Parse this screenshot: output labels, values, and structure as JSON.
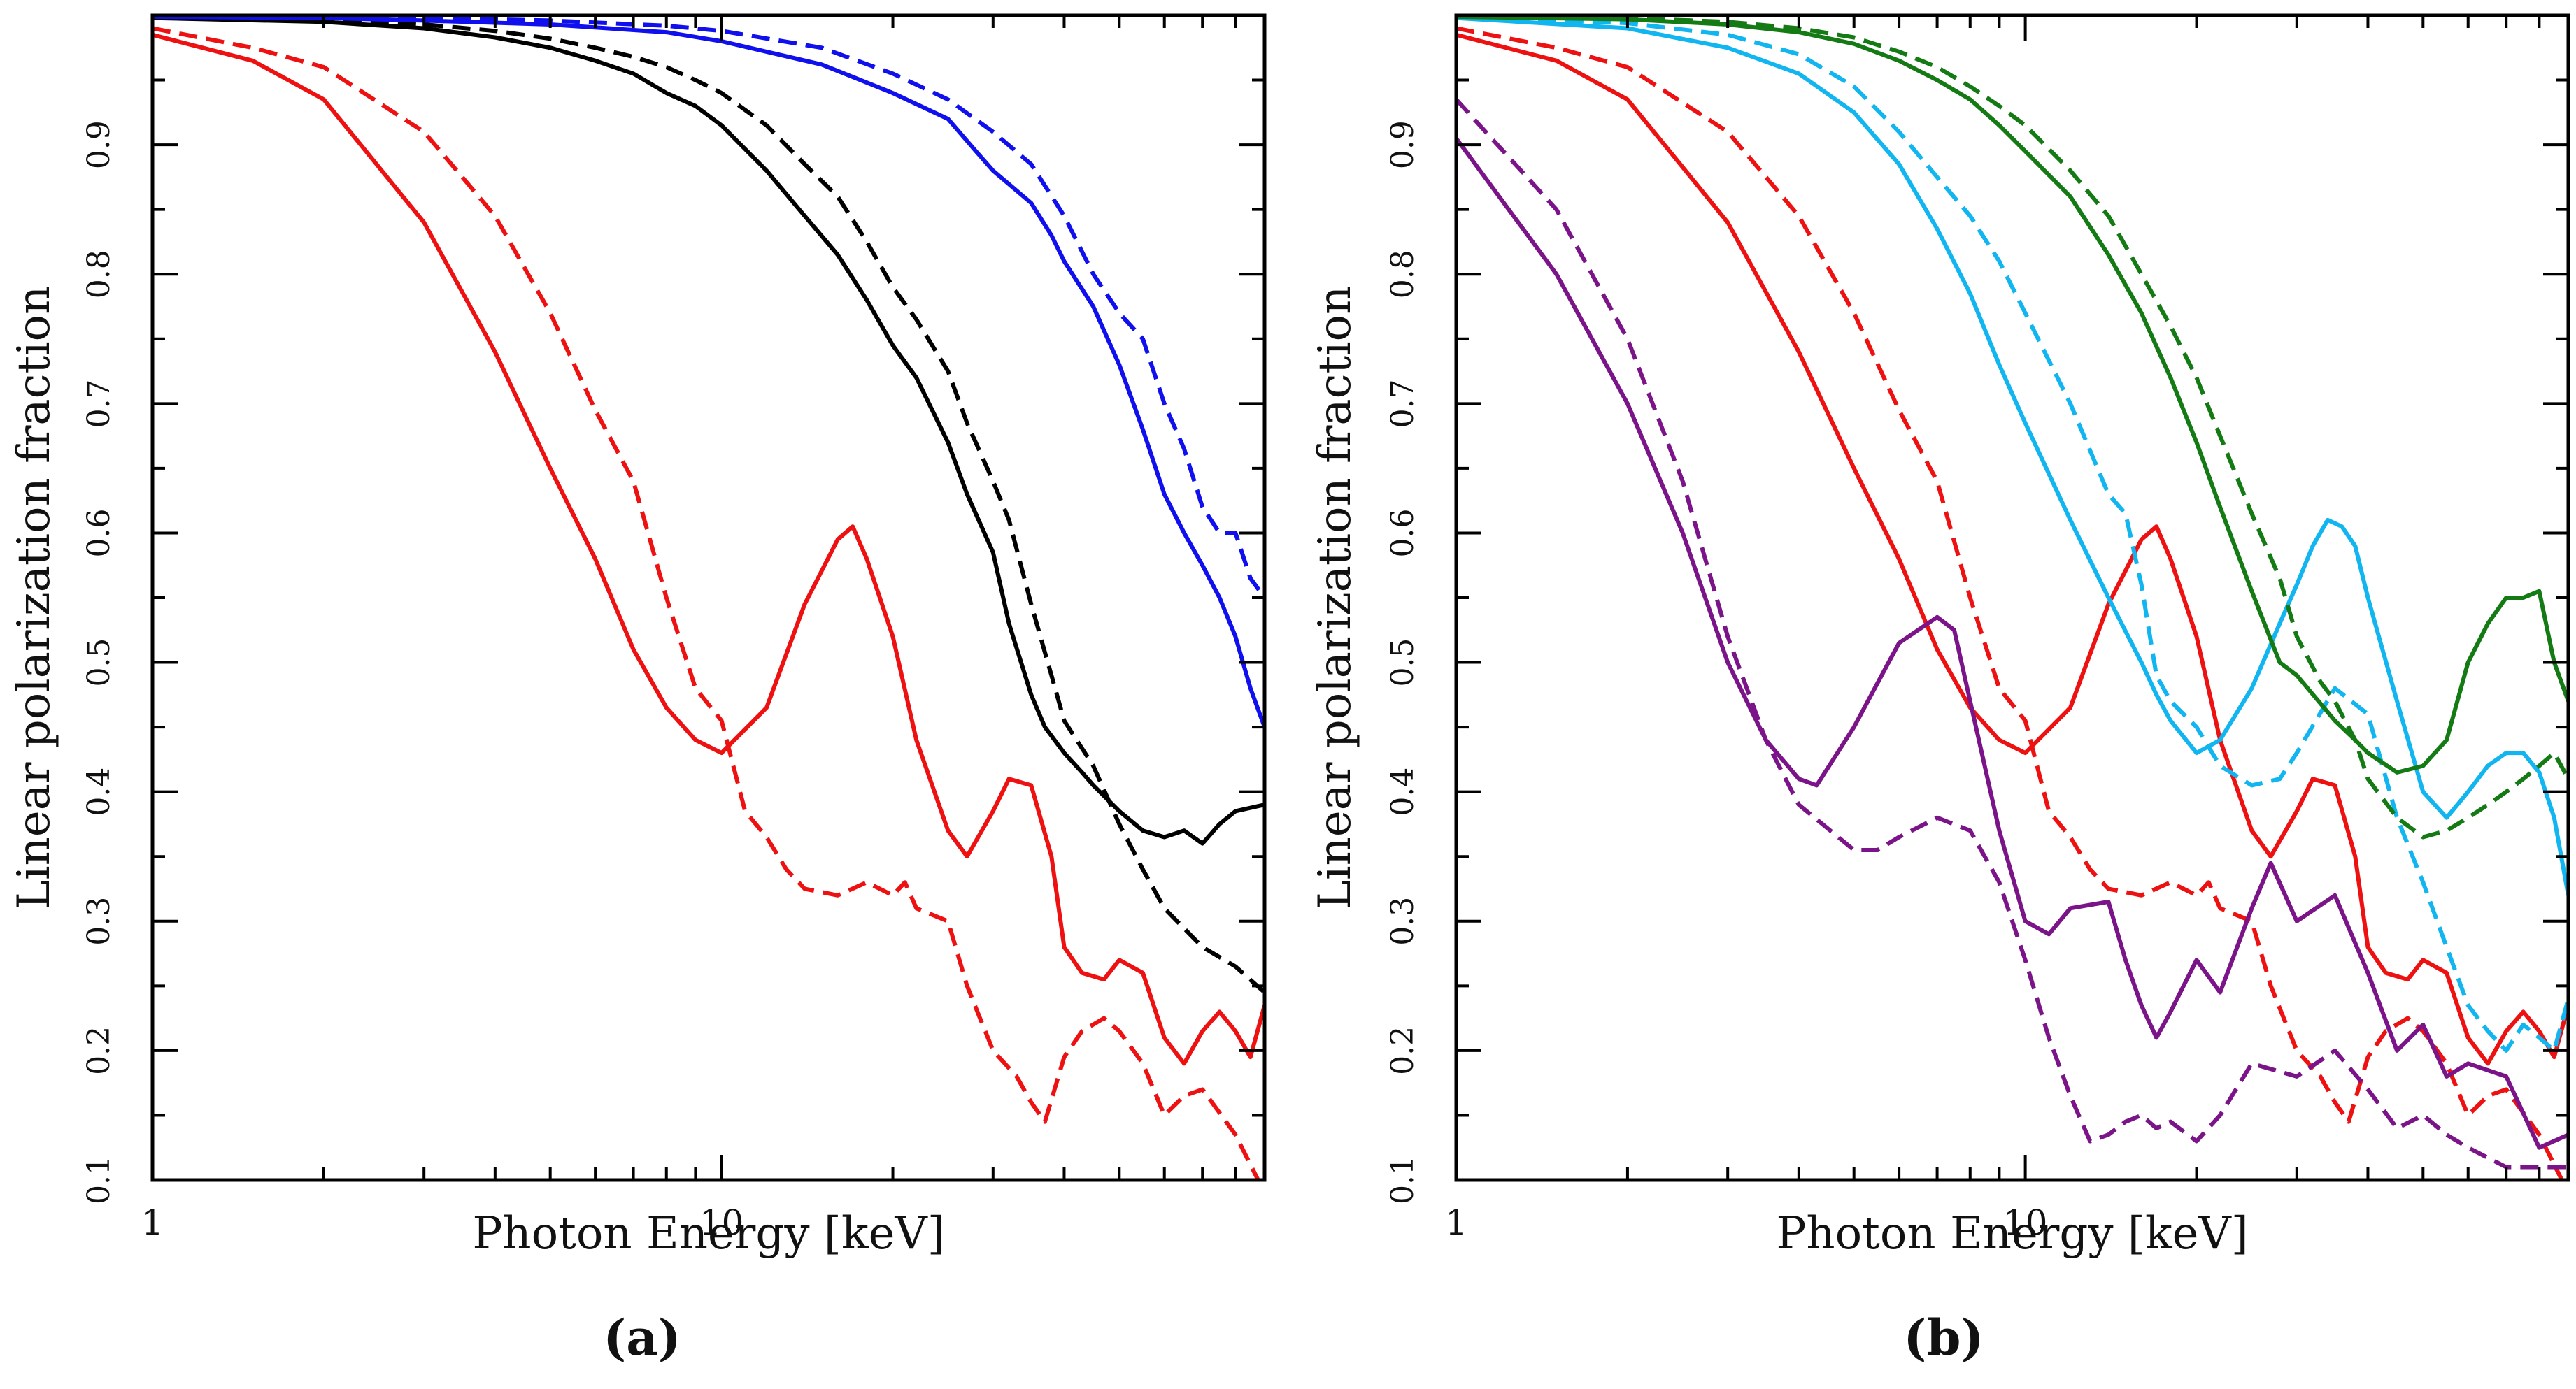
{
  "chart_data": [
    {
      "type": "line",
      "panel_label": "(a)",
      "xlabel": "Photon Energy [keV]",
      "ylabel": "Linear polarization fraction",
      "xscale": "log",
      "xlim": [
        1,
        90
      ],
      "ylim": [
        0.1,
        1.0
      ],
      "x_major_ticks": [
        1,
        10
      ],
      "x_tick_labels": [
        "1",
        "10"
      ],
      "y_ticks": [
        0.1,
        0.2,
        0.3,
        0.4,
        0.5,
        0.6,
        0.7,
        0.8,
        0.9
      ],
      "y_tick_labels": [
        "0.1",
        "0.2",
        "0.3",
        "0.4",
        "0.5",
        "0.6",
        "0.7",
        "0.8",
        "0.9"
      ],
      "grid": false,
      "series": [
        {
          "name": "red-solid",
          "color": "#ee1111",
          "dash": "solid",
          "x": [
            1,
            1.5,
            2,
            3,
            4,
            5,
            6,
            7,
            8,
            9,
            10,
            12,
            14,
            16,
            17,
            18,
            20,
            22,
            25,
            27,
            30,
            32,
            35,
            38,
            40,
            43,
            47,
            50,
            55,
            60,
            65,
            70,
            75,
            80,
            85,
            90
          ],
          "y": [
            0.985,
            0.965,
            0.935,
            0.84,
            0.74,
            0.65,
            0.58,
            0.51,
            0.465,
            0.44,
            0.43,
            0.465,
            0.545,
            0.595,
            0.605,
            0.58,
            0.52,
            0.44,
            0.37,
            0.35,
            0.385,
            0.41,
            0.405,
            0.35,
            0.28,
            0.26,
            0.255,
            0.27,
            0.26,
            0.21,
            0.19,
            0.215,
            0.23,
            0.215,
            0.195,
            0.235
          ]
        },
        {
          "name": "red-dashed",
          "color": "#ee1111",
          "dash": "dashed",
          "x": [
            1,
            1.5,
            2,
            3,
            4,
            5,
            6,
            7,
            8,
            9,
            10,
            11,
            12,
            13,
            14,
            16,
            18,
            20,
            21,
            22,
            25,
            27,
            30,
            33,
            35,
            37,
            40,
            43,
            47,
            50,
            55,
            60,
            65,
            70,
            80,
            90
          ],
          "y": [
            0.99,
            0.975,
            0.96,
            0.91,
            0.845,
            0.77,
            0.695,
            0.64,
            0.55,
            0.48,
            0.455,
            0.385,
            0.365,
            0.34,
            0.325,
            0.32,
            0.33,
            0.32,
            0.33,
            0.31,
            0.3,
            0.25,
            0.2,
            0.18,
            0.16,
            0.145,
            0.195,
            0.215,
            0.225,
            0.215,
            0.19,
            0.15,
            0.165,
            0.17,
            0.135,
            0.09
          ]
        },
        {
          "name": "black-solid",
          "color": "#000000",
          "dash": "solid",
          "x": [
            1,
            2,
            3,
            4,
            5,
            6,
            7,
            8,
            9,
            10,
            12,
            14,
            16,
            18,
            20,
            22,
            25,
            27,
            30,
            32,
            35,
            37,
            40,
            43,
            45,
            50,
            55,
            60,
            65,
            70,
            75,
            80,
            90
          ],
          "y": [
            0.998,
            0.995,
            0.99,
            0.983,
            0.975,
            0.965,
            0.955,
            0.94,
            0.93,
            0.915,
            0.88,
            0.845,
            0.815,
            0.78,
            0.745,
            0.72,
            0.67,
            0.63,
            0.585,
            0.53,
            0.475,
            0.45,
            0.43,
            0.415,
            0.405,
            0.385,
            0.37,
            0.365,
            0.37,
            0.36,
            0.375,
            0.385,
            0.39
          ]
        },
        {
          "name": "black-dashed",
          "color": "#000000",
          "dash": "dashed",
          "x": [
            1,
            2,
            3,
            4,
            5,
            6,
            7,
            8,
            9,
            10,
            12,
            14,
            16,
            18,
            20,
            22,
            25,
            27,
            30,
            32,
            35,
            38,
            40,
            45,
            50,
            55,
            60,
            70,
            80,
            90
          ],
          "y": [
            0.999,
            0.997,
            0.993,
            0.988,
            0.982,
            0.975,
            0.968,
            0.96,
            0.95,
            0.94,
            0.915,
            0.885,
            0.86,
            0.825,
            0.79,
            0.765,
            0.725,
            0.685,
            0.64,
            0.61,
            0.545,
            0.49,
            0.455,
            0.42,
            0.375,
            0.34,
            0.31,
            0.28,
            0.265,
            0.245
          ]
        },
        {
          "name": "blue-solid",
          "color": "#1010ee",
          "dash": "solid",
          "x": [
            1,
            2,
            3,
            5,
            8,
            10,
            15,
            20,
            25,
            28,
            30,
            35,
            38,
            40,
            45,
            50,
            55,
            60,
            65,
            70,
            75,
            80,
            85,
            90
          ],
          "y": [
            0.999,
            0.998,
            0.996,
            0.993,
            0.987,
            0.98,
            0.962,
            0.94,
            0.92,
            0.895,
            0.88,
            0.855,
            0.83,
            0.81,
            0.775,
            0.73,
            0.68,
            0.63,
            0.6,
            0.575,
            0.55,
            0.52,
            0.48,
            0.45
          ]
        },
        {
          "name": "blue-dashed",
          "color": "#1010ee",
          "dash": "dashed",
          "x": [
            1,
            2,
            3,
            5,
            8,
            10,
            15,
            20,
            25,
            30,
            35,
            40,
            45,
            50,
            55,
            60,
            65,
            70,
            75,
            80,
            85,
            90
          ],
          "y": [
            1.0,
            0.999,
            0.998,
            0.996,
            0.992,
            0.988,
            0.975,
            0.955,
            0.935,
            0.91,
            0.885,
            0.845,
            0.8,
            0.77,
            0.75,
            0.7,
            0.665,
            0.62,
            0.6,
            0.6,
            0.565,
            0.55
          ]
        }
      ]
    },
    {
      "type": "line",
      "panel_label": "(b)",
      "xlabel": "Photon Energy [keV]",
      "ylabel": "Linear polarization fraction",
      "xscale": "log",
      "xlim": [
        1,
        90
      ],
      "ylim": [
        0.1,
        1.0
      ],
      "x_major_ticks": [
        1,
        10
      ],
      "x_tick_labels": [
        "1",
        "10"
      ],
      "y_ticks": [
        0.1,
        0.2,
        0.3,
        0.4,
        0.5,
        0.6,
        0.7,
        0.8,
        0.9
      ],
      "y_tick_labels": [
        "0.1",
        "0.2",
        "0.3",
        "0.4",
        "0.5",
        "0.6",
        "0.7",
        "0.8",
        "0.9"
      ],
      "grid": false,
      "series": [
        {
          "name": "red-solid",
          "color": "#ee1111",
          "dash": "solid",
          "x": [
            1,
            1.5,
            2,
            3,
            4,
            5,
            6,
            7,
            8,
            9,
            10,
            12,
            14,
            16,
            17,
            18,
            20,
            22,
            25,
            27,
            30,
            32,
            35,
            38,
            40,
            43,
            47,
            50,
            55,
            60,
            65,
            70,
            75,
            80,
            85,
            90
          ],
          "y": [
            0.985,
            0.965,
            0.935,
            0.84,
            0.74,
            0.65,
            0.58,
            0.51,
            0.465,
            0.44,
            0.43,
            0.465,
            0.545,
            0.595,
            0.605,
            0.58,
            0.52,
            0.44,
            0.37,
            0.35,
            0.385,
            0.41,
            0.405,
            0.35,
            0.28,
            0.26,
            0.255,
            0.27,
            0.26,
            0.21,
            0.19,
            0.215,
            0.23,
            0.215,
            0.195,
            0.235
          ]
        },
        {
          "name": "red-dashed",
          "color": "#ee1111",
          "dash": "dashed",
          "x": [
            1,
            1.5,
            2,
            3,
            4,
            5,
            6,
            7,
            8,
            9,
            10,
            11,
            12,
            13,
            14,
            16,
            18,
            20,
            21,
            22,
            25,
            27,
            30,
            33,
            35,
            37,
            40,
            43,
            47,
            50,
            55,
            60,
            65,
            70,
            80,
            90
          ],
          "y": [
            0.99,
            0.975,
            0.96,
            0.91,
            0.845,
            0.77,
            0.695,
            0.64,
            0.55,
            0.48,
            0.455,
            0.385,
            0.365,
            0.34,
            0.325,
            0.32,
            0.33,
            0.32,
            0.33,
            0.31,
            0.3,
            0.25,
            0.2,
            0.18,
            0.16,
            0.145,
            0.195,
            0.215,
            0.225,
            0.215,
            0.19,
            0.15,
            0.165,
            0.17,
            0.135,
            0.09
          ]
        },
        {
          "name": "cyan-solid",
          "color": "#11b5f0",
          "dash": "solid",
          "x": [
            1,
            2,
            3,
            4,
            5,
            6,
            7,
            8,
            9,
            10,
            12,
            14,
            16,
            17,
            18,
            20,
            22,
            25,
            28,
            30,
            32,
            34,
            36,
            38,
            40,
            45,
            50,
            55,
            60,
            65,
            70,
            75,
            80,
            85,
            90
          ],
          "y": [
            0.998,
            0.99,
            0.975,
            0.955,
            0.925,
            0.885,
            0.835,
            0.785,
            0.73,
            0.685,
            0.61,
            0.55,
            0.5,
            0.475,
            0.455,
            0.43,
            0.44,
            0.48,
            0.53,
            0.56,
            0.59,
            0.61,
            0.605,
            0.59,
            0.55,
            0.47,
            0.4,
            0.38,
            0.4,
            0.42,
            0.43,
            0.43,
            0.415,
            0.38,
            0.32
          ]
        },
        {
          "name": "cyan-dashed",
          "color": "#11b5f0",
          "dash": "dashed",
          "x": [
            1,
            2,
            3,
            4,
            5,
            6,
            7,
            8,
            9,
            10,
            12,
            14,
            15,
            16,
            17,
            18,
            20,
            22,
            25,
            28,
            30,
            35,
            40,
            45,
            50,
            55,
            60,
            65,
            70,
            75,
            80,
            85,
            90
          ],
          "y": [
            0.999,
            0.994,
            0.985,
            0.97,
            0.945,
            0.91,
            0.875,
            0.845,
            0.81,
            0.77,
            0.7,
            0.63,
            0.615,
            0.56,
            0.49,
            0.47,
            0.45,
            0.42,
            0.405,
            0.41,
            0.43,
            0.48,
            0.46,
            0.38,
            0.33,
            0.28,
            0.235,
            0.215,
            0.2,
            0.22,
            0.21,
            0.2,
            0.24
          ]
        },
        {
          "name": "green-solid",
          "color": "#147a14",
          "dash": "solid",
          "x": [
            1,
            2,
            3,
            4,
            5,
            6,
            7,
            8,
            9,
            10,
            12,
            14,
            16,
            18,
            20,
            22,
            25,
            28,
            30,
            35,
            38,
            40,
            45,
            50,
            55,
            60,
            65,
            70,
            75,
            80,
            85,
            90
          ],
          "y": [
            0.999,
            0.997,
            0.993,
            0.987,
            0.978,
            0.965,
            0.95,
            0.935,
            0.915,
            0.895,
            0.86,
            0.815,
            0.77,
            0.72,
            0.67,
            0.62,
            0.555,
            0.5,
            0.49,
            0.455,
            0.44,
            0.43,
            0.415,
            0.42,
            0.44,
            0.5,
            0.53,
            0.55,
            0.55,
            0.555,
            0.5,
            0.47
          ]
        },
        {
          "name": "green-dashed",
          "color": "#147a14",
          "dash": "dashed",
          "x": [
            1,
            2,
            3,
            4,
            5,
            6,
            7,
            8,
            9,
            10,
            12,
            14,
            16,
            18,
            20,
            22,
            25,
            28,
            30,
            33,
            35,
            38,
            40,
            45,
            50,
            55,
            60,
            65,
            70,
            75,
            80,
            85,
            90
          ],
          "y": [
            1.0,
            0.998,
            0.995,
            0.99,
            0.983,
            0.972,
            0.96,
            0.945,
            0.93,
            0.915,
            0.88,
            0.845,
            0.8,
            0.76,
            0.72,
            0.675,
            0.615,
            0.565,
            0.52,
            0.485,
            0.47,
            0.44,
            0.41,
            0.38,
            0.365,
            0.37,
            0.38,
            0.39,
            0.4,
            0.41,
            0.42,
            0.43,
            0.41
          ]
        },
        {
          "name": "purple-solid",
          "color": "#7a1488",
          "dash": "solid",
          "x": [
            1,
            1.5,
            2,
            2.5,
            3,
            3.5,
            4,
            4.3,
            5,
            6,
            7,
            7.5,
            8,
            9,
            10,
            11,
            12,
            14,
            15,
            16,
            17,
            18,
            20,
            22,
            25,
            27,
            30,
            35,
            40,
            45,
            50,
            55,
            60,
            70,
            80,
            90
          ],
          "y": [
            0.905,
            0.8,
            0.7,
            0.6,
            0.5,
            0.44,
            0.41,
            0.405,
            0.45,
            0.515,
            0.535,
            0.525,
            0.47,
            0.37,
            0.3,
            0.29,
            0.31,
            0.315,
            0.27,
            0.235,
            0.21,
            0.23,
            0.27,
            0.245,
            0.31,
            0.345,
            0.3,
            0.32,
            0.26,
            0.2,
            0.22,
            0.18,
            0.19,
            0.18,
            0.125,
            0.135
          ]
        },
        {
          "name": "purple-dashed",
          "color": "#7a1488",
          "dash": "dashed",
          "x": [
            1,
            1.5,
            2,
            2.5,
            3,
            3.5,
            4,
            5,
            5.5,
            6,
            7,
            8,
            9,
            10,
            11,
            12,
            13,
            14,
            15,
            16,
            17,
            18,
            20,
            22,
            25,
            30,
            35,
            40,
            45,
            50,
            55,
            60,
            70,
            80,
            90
          ],
          "y": [
            0.935,
            0.85,
            0.75,
            0.64,
            0.52,
            0.44,
            0.39,
            0.355,
            0.355,
            0.365,
            0.38,
            0.37,
            0.33,
            0.27,
            0.21,
            0.165,
            0.13,
            0.135,
            0.145,
            0.15,
            0.14,
            0.145,
            0.13,
            0.15,
            0.19,
            0.18,
            0.2,
            0.17,
            0.14,
            0.15,
            0.135,
            0.125,
            0.11,
            0.11,
            0.11
          ]
        }
      ]
    }
  ]
}
